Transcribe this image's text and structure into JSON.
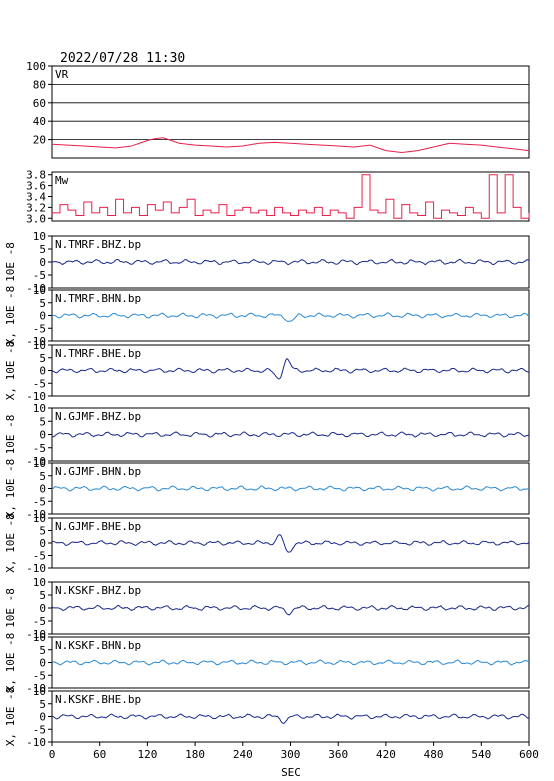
{
  "header": {
    "timestamp": "2022/07/28  11:30"
  },
  "chart_data": {
    "type": "line",
    "xlabel": "SEC",
    "x_ticks": [
      0,
      60,
      120,
      180,
      240,
      300,
      360,
      420,
      480,
      540,
      600
    ],
    "xlim": [
      0,
      600
    ],
    "panels": [
      {
        "label": "VR",
        "ylim": [
          0,
          100
        ],
        "y_ticks": [
          20,
          40,
          60,
          80,
          100
        ],
        "y_ticklabels": [
          "20",
          "40",
          "60",
          "80",
          "100"
        ],
        "gridlines": [
          20,
          40,
          60,
          80
        ],
        "color": "#e8204a",
        "series": {
          "x": [
            0,
            20,
            40,
            60,
            80,
            100,
            110,
            120,
            130,
            140,
            150,
            160,
            180,
            200,
            220,
            240,
            260,
            280,
            300,
            320,
            340,
            360,
            380,
            400,
            410,
            420,
            440,
            460,
            480,
            500,
            520,
            540,
            560,
            580,
            600
          ],
          "y": [
            15,
            14,
            13,
            12,
            11,
            13,
            16,
            19,
            21,
            22,
            19,
            16,
            14,
            13,
            12,
            13,
            16,
            17,
            16,
            15,
            14,
            13,
            12,
            14,
            11,
            8,
            6,
            8,
            12,
            16,
            15,
            14,
            12,
            10,
            8
          ]
        }
      },
      {
        "label": "Mw",
        "ylim": [
          2.95,
          3.85
        ],
        "y_ticks": [
          3.0,
          3.2,
          3.4,
          3.6,
          3.8
        ],
        "y_ticklabels": [
          "3.0",
          "3.2",
          "3.4",
          "3.6",
          "3.8"
        ],
        "gridlines": [],
        "color": "#e8204a",
        "series": {
          "x": [
            0,
            10,
            20,
            30,
            40,
            50,
            60,
            70,
            80,
            90,
            100,
            110,
            120,
            130,
            140,
            150,
            160,
            170,
            180,
            190,
            200,
            210,
            220,
            230,
            240,
            250,
            260,
            270,
            280,
            290,
            300,
            310,
            320,
            330,
            340,
            350,
            360,
            370,
            380,
            390,
            400,
            410,
            420,
            430,
            440,
            450,
            460,
            470,
            480,
            490,
            500,
            510,
            520,
            530,
            540,
            550,
            560,
            570,
            580,
            590,
            600
          ],
          "y": [
            3.1,
            3.25,
            3.15,
            3.05,
            3.3,
            3.1,
            3.2,
            3.05,
            3.35,
            3.1,
            3.2,
            3.05,
            3.25,
            3.15,
            3.3,
            3.1,
            3.2,
            3.35,
            3.05,
            3.15,
            3.1,
            3.25,
            3.05,
            3.15,
            3.2,
            3.1,
            3.15,
            3.05,
            3.2,
            3.1,
            3.05,
            3.15,
            3.1,
            3.2,
            3.05,
            3.15,
            3.1,
            3.0,
            3.2,
            3.8,
            3.15,
            3.1,
            3.35,
            3.0,
            3.25,
            3.1,
            3.05,
            3.3,
            3.0,
            3.15,
            3.1,
            3.05,
            3.2,
            3.1,
            3.0,
            3.8,
            3.1,
            3.8,
            3.2,
            3.0,
            3.1
          ]
        }
      },
      {
        "label": "N.TMRF.BHZ.bp",
        "ylim": [
          -10,
          10
        ],
        "y_ticks": [
          -10,
          -5,
          0,
          5,
          10
        ],
        "y_ticklabels": [
          "-10",
          "-5",
          "0",
          "5",
          "10"
        ],
        "gridlines": [],
        "color": "#1a2a8a",
        "ylabel": "10E -8",
        "events": []
      },
      {
        "label": "N.TMRF.BHN.bp",
        "ylim": [
          -10,
          10
        ],
        "y_ticks": [
          -10,
          -5,
          0,
          5,
          10
        ],
        "y_ticklabels": [
          "-10",
          "-5",
          "0",
          "5",
          "10"
        ],
        "gridlines": [],
        "color": "#2a8ad4",
        "ylabel": "X, 10E -8",
        "events": [
          {
            "t": 300,
            "a": -2.5
          }
        ]
      },
      {
        "label": "N.TMRF.BHE.bp",
        "ylim": [
          -10,
          10
        ],
        "y_ticks": [
          -10,
          -5,
          0,
          5,
          10
        ],
        "y_ticklabels": [
          "-10",
          "-5",
          "0",
          "5",
          "10"
        ],
        "gridlines": [],
        "color": "#1a2a8a",
        "ylabel": "X, 10E -8",
        "events": [
          {
            "t": 285,
            "a": -3.5
          },
          {
            "t": 295,
            "a": 4.5
          }
        ]
      },
      {
        "label": "N.GJMF.BHZ.bp",
        "ylim": [
          -10,
          10
        ],
        "y_ticks": [
          -10,
          -5,
          0,
          5,
          10
        ],
        "y_ticklabels": [
          "-10",
          "-5",
          "0",
          "5",
          "10"
        ],
        "gridlines": [],
        "color": "#1a2a8a",
        "ylabel": "10E -8",
        "events": []
      },
      {
        "label": "N.GJMF.BHN.bp",
        "ylim": [
          -10,
          10
        ],
        "y_ticks": [
          -10,
          -5,
          0,
          5,
          10
        ],
        "y_ticklabels": [
          "-10",
          "-5",
          "0",
          "5",
          "10"
        ],
        "gridlines": [],
        "color": "#2a8ad4",
        "ylabel": "X, 10E -8",
        "events": []
      },
      {
        "label": "N.GJMF.BHE.bp",
        "ylim": [
          -10,
          10
        ],
        "y_ticks": [
          -10,
          -5,
          0,
          5,
          10
        ],
        "y_ticklabels": [
          "-10",
          "-5",
          "0",
          "5",
          "10"
        ],
        "gridlines": [],
        "color": "#1a2a8a",
        "ylabel": "X, 10E -8",
        "events": [
          {
            "t": 288,
            "a": 3.5
          },
          {
            "t": 296,
            "a": -4.5
          }
        ]
      },
      {
        "label": "N.KSKF.BHZ.bp",
        "ylim": [
          -10,
          10
        ],
        "y_ticks": [
          -10,
          -5,
          0,
          5,
          10
        ],
        "y_ticklabels": [
          "-10",
          "-5",
          "0",
          "5",
          "10"
        ],
        "gridlines": [],
        "color": "#1a2a8a",
        "ylabel": "10E -8",
        "events": [
          {
            "t": 297,
            "a": -1.8
          }
        ]
      },
      {
        "label": "N.KSKF.BHN.bp",
        "ylim": [
          -10,
          10
        ],
        "y_ticks": [
          -10,
          -5,
          0,
          5,
          10
        ],
        "y_ticklabels": [
          "-10",
          "-5",
          "0",
          "5",
          "10"
        ],
        "gridlines": [],
        "color": "#2a8ad4",
        "ylabel": "X, 10E -8",
        "events": []
      },
      {
        "label": "N.KSKF.BHE.bp",
        "ylim": [
          -10,
          10
        ],
        "y_ticks": [
          -10,
          -5,
          0,
          5,
          10
        ],
        "y_ticklabels": [
          "-10",
          "-5",
          "0",
          "5",
          "10"
        ],
        "gridlines": [],
        "color": "#1a2a8a",
        "ylabel": "X, 10E -8",
        "events": [
          {
            "t": 292,
            "a": -2.0
          }
        ]
      }
    ]
  }
}
